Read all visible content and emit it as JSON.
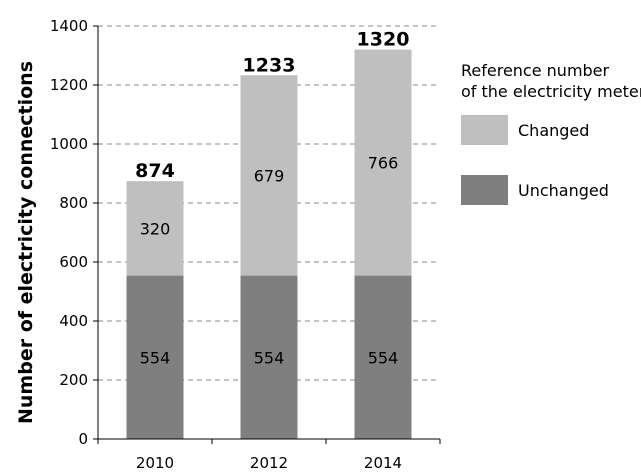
{
  "chart_data": {
    "type": "bar",
    "stacked": true,
    "categories": [
      "2010",
      "2012",
      "2014"
    ],
    "series": [
      {
        "name": "Unchanged",
        "values": [
          554,
          554,
          554
        ],
        "color": "#7f7f7f"
      },
      {
        "name": "Changed",
        "values": [
          320,
          679,
          766
        ],
        "color": "#bfbfbf"
      }
    ],
    "totals": [
      874,
      1233,
      1320
    ],
    "ylabel": "Number of electricity connections",
    "xlabel": "",
    "ylim": [
      0,
      1400
    ],
    "yticks": [
      0,
      200,
      400,
      600,
      800,
      1000,
      1200,
      1400
    ],
    "grid": "horizontal dashed",
    "legend": {
      "title_lines": [
        "Reference number",
        "of the electricity meter"
      ],
      "placement": "right",
      "order": [
        "Changed",
        "Unchanged"
      ]
    }
  }
}
